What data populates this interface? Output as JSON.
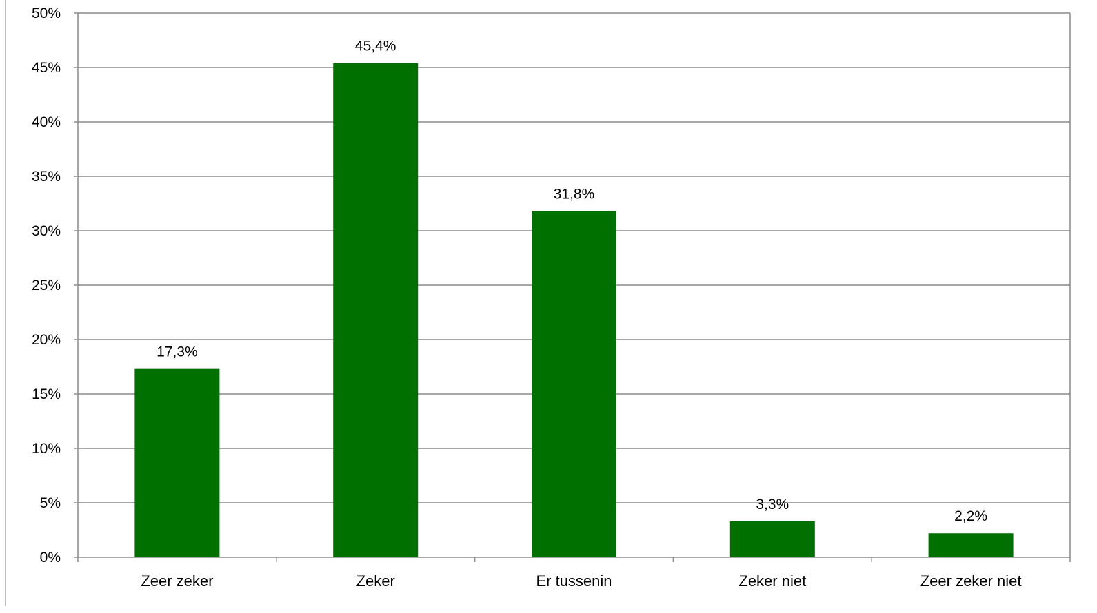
{
  "chart_data": {
    "type": "bar",
    "categories": [
      "Zeer zeker",
      "Zeker",
      "Er tussenin",
      "Zeker niet",
      "Zeer zeker niet"
    ],
    "values": [
      17.3,
      45.4,
      31.8,
      3.3,
      2.2
    ],
    "value_labels": [
      "17,3%",
      "45,4%",
      "31,8%",
      "3,3%",
      "2,2%"
    ],
    "y_ticks": [
      "0%",
      "5%",
      "10%",
      "15%",
      "20%",
      "25%",
      "30%",
      "35%",
      "40%",
      "45%",
      "50%"
    ],
    "ylim": [
      0,
      50
    ],
    "title": "",
    "xlabel": "",
    "ylabel": "",
    "grid": true,
    "legend": "none",
    "colors": {
      "bar": "#007000",
      "grid": "#8c8c8c",
      "axis": "#8c8c8c"
    }
  }
}
